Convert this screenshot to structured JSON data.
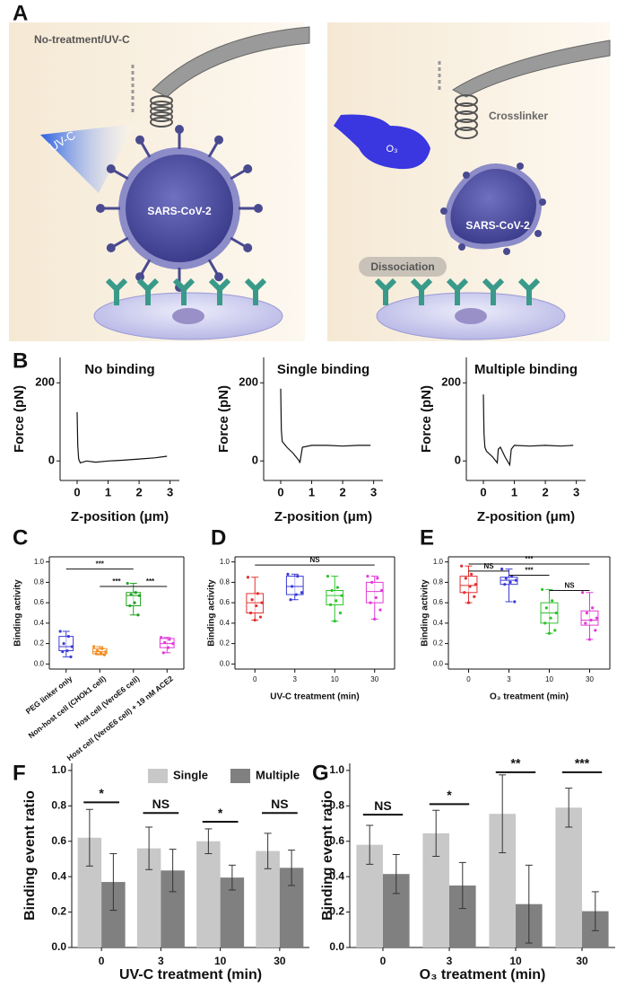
{
  "panel_labels": [
    "A",
    "B",
    "C",
    "D",
    "E",
    "F",
    "G"
  ],
  "illustration": {
    "left": {
      "title": "No-treatment/UV-C",
      "uv": "UV-C",
      "virus": "SARS-CoV-2"
    },
    "right": {
      "ozone": "O₃",
      "crosslinker": "Crosslinker",
      "virus": "SARS-CoV-2",
      "dissociation": "Dissociation"
    }
  },
  "chart_data": [
    {
      "type": "line",
      "title": "No binding",
      "x_label": "Z-position (μm)",
      "y_label": "Force (pN)",
      "xlim": [
        -0.55,
        3.3
      ],
      "xticks": [
        0,
        1,
        2,
        3
      ],
      "ylim": [
        -50,
        265
      ],
      "yticks": [
        0,
        200
      ],
      "x": [
        0,
        0.02,
        0.05,
        0.1,
        0.3,
        0.6,
        1.0,
        1.5,
        2.0,
        2.5,
        2.9
      ],
      "series": [
        {
          "color": "#111111",
          "values": [
            125,
            40,
            5,
            -5,
            0,
            -3,
            0,
            2,
            5,
            8,
            12
          ]
        }
      ]
    },
    {
      "type": "line",
      "title": "Single binding",
      "x_label": "Z-position (μm)",
      "y_label": "Force (pN)",
      "xlim": [
        -0.55,
        3.3
      ],
      "xticks": [
        0,
        1,
        2,
        3
      ],
      "ylim": [
        -50,
        265
      ],
      "yticks": [
        0,
        200
      ],
      "x": [
        0,
        0.02,
        0.05,
        0.1,
        0.2,
        0.4,
        0.6,
        0.62,
        0.7,
        1.0,
        1.5,
        2.0,
        2.5,
        2.9
      ],
      "series": [
        {
          "color": "#111111",
          "values": [
            185,
            80,
            50,
            45,
            35,
            20,
            0,
            -5,
            35,
            40,
            40,
            38,
            40,
            40
          ]
        }
      ]
    },
    {
      "type": "line",
      "title": "Multiple binding",
      "x_label": "Z-position (μm)",
      "y_label": "Force (pN)",
      "xlim": [
        -0.55,
        3.3
      ],
      "xticks": [
        0,
        1,
        2,
        3
      ],
      "ylim": [
        -50,
        265
      ],
      "yticks": [
        0,
        200
      ],
      "x": [
        0,
        0.02,
        0.05,
        0.1,
        0.3,
        0.45,
        0.48,
        0.55,
        0.7,
        0.85,
        0.9,
        1.0,
        1.5,
        2.0,
        2.5,
        2.9
      ],
      "series": [
        {
          "color": "#111111",
          "values": [
            170,
            70,
            35,
            25,
            10,
            -5,
            30,
            35,
            10,
            -10,
            30,
            40,
            38,
            40,
            38,
            40
          ]
        }
      ]
    },
    {
      "type": "box",
      "y_label": "Binding activity",
      "ylim": [
        -0.05,
        1.05
      ],
      "yticks": [
        {
          "value": 0,
          "label": "0.0"
        },
        0.2,
        0.4,
        0.6,
        0.8,
        {
          "value": 1,
          "label": "1.0"
        }
      ],
      "categories": [
        "PEG linker only",
        "Non-host cell (CHOk1 cell)",
        "Host cell (VeroE6 cell)",
        "Host cell (VeroE6 cell) + 19 nM ACE2"
      ],
      "boxes": [
        {
          "color": "#3b3bd6",
          "min": 0.07,
          "q1": 0.13,
          "median": 0.17,
          "q3": 0.27,
          "max": 0.32,
          "points": [
            0.32,
            0.27,
            0.2,
            0.17,
            0.13,
            0.12,
            0.07
          ]
        },
        {
          "color": "#f08a1c",
          "min": 0.09,
          "q1": 0.1,
          "median": 0.12,
          "q3": 0.15,
          "max": 0.17,
          "points": [
            0.17,
            0.15,
            0.13,
            0.12,
            0.11,
            0.1,
            0.09
          ]
        },
        {
          "color": "#1fa31f",
          "min": 0.48,
          "q1": 0.57,
          "median": 0.67,
          "q3": 0.7,
          "max": 0.79,
          "points": [
            0.79,
            0.7,
            0.68,
            0.67,
            0.6,
            0.57,
            0.48
          ]
        },
        {
          "color": "#e23ad8",
          "min": 0.11,
          "q1": 0.16,
          "median": 0.2,
          "q3": 0.25,
          "max": 0.26,
          "points": [
            0.26,
            0.24,
            0.21,
            0.2,
            0.16,
            0.11
          ]
        }
      ],
      "annotations": [
        {
          "text": "***",
          "from": 0,
          "to": 2,
          "y": 0.93
        },
        {
          "text": "***",
          "from": 1,
          "to": 2,
          "y": 0.76
        },
        {
          "text": "***",
          "from": 2,
          "to": 3,
          "y": 0.76
        }
      ]
    },
    {
      "type": "box",
      "x_label": "UV-C treatment (min)",
      "y_label": "Binding activity",
      "ylim": [
        -0.05,
        1.05
      ],
      "yticks": [
        {
          "value": 0,
          "label": "0.0"
        },
        0.2,
        0.4,
        0.6,
        0.8,
        {
          "value": 1,
          "label": "1.0"
        }
      ],
      "categories": [
        "0",
        "3",
        "10",
        "30"
      ],
      "boxes": [
        {
          "color": "#e33030",
          "min": 0.43,
          "q1": 0.5,
          "median": 0.6,
          "q3": 0.69,
          "max": 0.85,
          "points": [
            0.85,
            0.69,
            0.63,
            0.6,
            0.57,
            0.5,
            0.46,
            0.43
          ]
        },
        {
          "color": "#3b3bd6",
          "min": 0.63,
          "q1": 0.68,
          "median": 0.76,
          "q3": 0.86,
          "max": 0.88,
          "points": [
            0.88,
            0.86,
            0.76,
            0.7,
            0.68,
            0.63
          ]
        },
        {
          "color": "#2cc42c",
          "min": 0.42,
          "q1": 0.58,
          "median": 0.67,
          "q3": 0.72,
          "max": 0.86,
          "points": [
            0.86,
            0.75,
            0.72,
            0.67,
            0.62,
            0.58,
            0.5,
            0.42
          ]
        },
        {
          "color": "#e23ad8",
          "min": 0.44,
          "q1": 0.6,
          "median": 0.71,
          "q3": 0.8,
          "max": 0.86,
          "points": [
            0.86,
            0.84,
            0.8,
            0.72,
            0.65,
            0.6,
            0.53,
            0.44
          ]
        }
      ],
      "annotations": [
        {
          "text": "NS",
          "from": 0,
          "to": 3,
          "y": 0.97
        }
      ]
    },
    {
      "type": "box",
      "x_label": "O₃ treatment (min)",
      "y_label": "Binding activity",
      "ylim": [
        -0.05,
        1.05
      ],
      "yticks": [
        {
          "value": 0,
          "label": "0.0"
        },
        0.2,
        0.4,
        0.6,
        0.8,
        {
          "value": 1,
          "label": "1.0"
        }
      ],
      "categories": [
        "0",
        "3",
        "10",
        "30"
      ],
      "boxes": [
        {
          "color": "#e33030",
          "min": 0.6,
          "q1": 0.7,
          "median": 0.77,
          "q3": 0.86,
          "max": 0.96,
          "points": [
            0.96,
            0.88,
            0.84,
            0.78,
            0.76,
            0.7,
            0.66,
            0.6
          ]
        },
        {
          "color": "#3b3bd6",
          "min": 0.61,
          "q1": 0.78,
          "median": 0.82,
          "q3": 0.85,
          "max": 0.93,
          "points": [
            0.93,
            0.86,
            0.84,
            0.82,
            0.8,
            0.78,
            0.61
          ]
        },
        {
          "color": "#2cc42c",
          "min": 0.3,
          "q1": 0.4,
          "median": 0.5,
          "q3": 0.6,
          "max": 0.73,
          "points": [
            0.73,
            0.62,
            0.55,
            0.5,
            0.45,
            0.4,
            0.33,
            0.3
          ]
        },
        {
          "color": "#e23ad8",
          "min": 0.24,
          "q1": 0.38,
          "median": 0.43,
          "q3": 0.52,
          "max": 0.7,
          "points": [
            0.7,
            0.55,
            0.5,
            0.45,
            0.43,
            0.4,
            0.33,
            0.24
          ]
        }
      ],
      "annotations": [
        {
          "text": "NS",
          "from": 0,
          "to": 1,
          "y": 0.91
        },
        {
          "text": "***",
          "from": 0,
          "to": 3,
          "y": 0.98
        },
        {
          "text": "***",
          "from": 1,
          "to": 2,
          "y": 0.87
        },
        {
          "text": "NS",
          "from": 2,
          "to": 3,
          "y": 0.72
        }
      ]
    },
    {
      "type": "bar",
      "x_label": "UV-C treatment (min)",
      "y_label": "Binding event ratio",
      "ylim": [
        0,
        1.04
      ],
      "yticks": [
        {
          "value": 0,
          "label": "0.0"
        },
        0.2,
        0.4,
        0.6,
        0.8,
        {
          "value": 1,
          "label": "1.0"
        }
      ],
      "categories": [
        "0",
        "3",
        "10",
        "30"
      ],
      "legend": "top",
      "series": [
        {
          "name": "Single",
          "color": "#c8c8c8",
          "values": [
            0.62,
            0.56,
            0.6,
            0.545
          ],
          "errors": [
            0.16,
            0.12,
            0.07,
            0.1
          ]
        },
        {
          "name": "Multiple",
          "color": "#808080",
          "values": [
            0.37,
            0.435,
            0.395,
            0.45
          ],
          "errors": [
            0.16,
            0.12,
            0.07,
            0.1
          ]
        }
      ],
      "annotations": [
        {
          "text": "*",
          "from": 0,
          "to": 0,
          "y": 0.82
        },
        {
          "text": "NS",
          "from": 1,
          "to": 1,
          "y": 0.76
        },
        {
          "text": "*",
          "from": 2,
          "to": 2,
          "y": 0.71
        },
        {
          "text": "NS",
          "from": 3,
          "to": 3,
          "y": 0.76
        }
      ]
    },
    {
      "type": "bar",
      "x_label": "O₃ treatment (min)",
      "y_label": "Binding event ratio",
      "ylim": [
        0,
        1.04
      ],
      "yticks": [
        {
          "value": 0,
          "label": "0.0"
        },
        0.2,
        0.4,
        0.6,
        0.8,
        {
          "value": 1,
          "label": "1.0"
        }
      ],
      "categories": [
        "0",
        "3",
        "10",
        "30"
      ],
      "series": [
        {
          "color": "#c8c8c8",
          "values": [
            0.58,
            0.645,
            0.755,
            0.79
          ],
          "errors": [
            0.11,
            0.13,
            0.22,
            0.11
          ]
        },
        {
          "color": "#808080",
          "values": [
            0.415,
            0.35,
            0.245,
            0.205
          ],
          "errors": [
            0.11,
            0.13,
            0.22,
            0.11
          ]
        }
      ],
      "annotations": [
        {
          "text": "NS",
          "from": 0,
          "to": 0,
          "y": 0.75
        },
        {
          "text": "*",
          "from": 1,
          "to": 1,
          "y": 0.81
        },
        {
          "text": "**",
          "from": 2,
          "to": 2,
          "y": 0.99
        },
        {
          "text": "***",
          "from": 3,
          "to": 3,
          "y": 0.99
        }
      ]
    }
  ]
}
